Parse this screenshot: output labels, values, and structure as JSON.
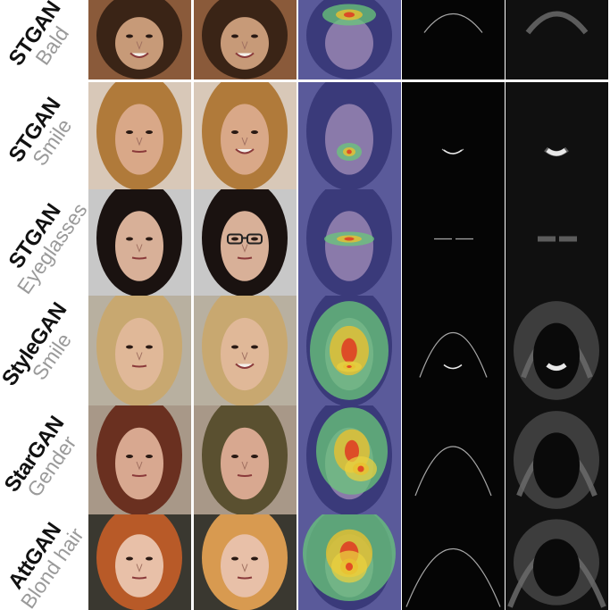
{
  "figure": {
    "rows": [
      {
        "method": "STGAN",
        "attribute": "Bald",
        "tone": "#c79a78",
        "hair": "#3a2416",
        "bg": "#8a5a3a",
        "modHair": "#3a2416",
        "heat": "forehead"
      },
      {
        "method": "STGAN",
        "attribute": "Smile",
        "tone": "#d9a888",
        "hair": "#b07a3a",
        "bg": "#d8c8b8",
        "modHair": "#b07a3a",
        "heat": "mouth"
      },
      {
        "method": "STGAN",
        "attribute": "Eyeglasses",
        "tone": "#d8b098",
        "hair": "#1a1210",
        "bg": "#c8c8c8",
        "modHair": "#1a1210",
        "heat": "eyes"
      },
      {
        "method": "StyleGAN",
        "attribute": "Smile",
        "tone": "#e0b898",
        "hair": "#c8a870",
        "bg": "#b8b0a0",
        "modHair": "#c8a870",
        "heat": "full"
      },
      {
        "method": "StarGAN",
        "attribute": "Gender",
        "tone": "#d8a890",
        "hair": "#6a3020",
        "bg": "#a89888",
        "modHair": "#5a5030",
        "heat": "wide"
      },
      {
        "method": "AttGAN",
        "attribute": "Blond hair",
        "tone": "#e8c0a8",
        "hair": "#b85a28",
        "bg": "#3a3830",
        "modHair": "#d89a50",
        "heat": "hair"
      }
    ]
  }
}
